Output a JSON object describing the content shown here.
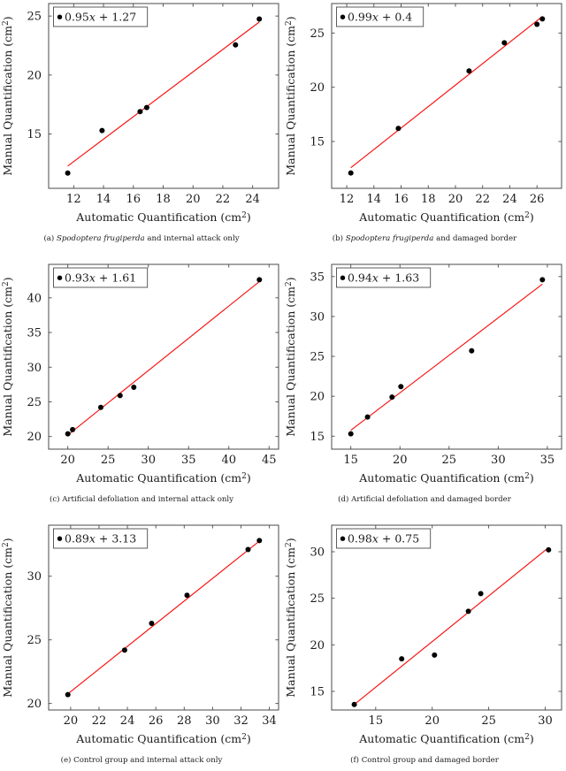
{
  "figure": {
    "xlabel": "Automatic Quantification (cm²)",
    "ylabel": "Manual Quantification (cm²)"
  },
  "colors": {
    "fit_line": "#f80f0f",
    "marker": "#000000",
    "frame": "#4a4a4a",
    "text": "#1b1b1b",
    "legend_bg": "#ffffff"
  },
  "chart_data": [
    {
      "id": "a",
      "type": "scatter",
      "xlabel": "Automatic Quantification (cm²)",
      "ylabel": "Manual Quantification (cm²)",
      "legend": {
        "label": "0.95x + 1.27",
        "coef": "0.95",
        "var": "x",
        "rest": " + 1.27",
        "position": "top-left"
      },
      "fit": {
        "slope": 0.95,
        "intercept": 1.27
      },
      "points": [
        [
          11.6,
          11.7
        ],
        [
          13.9,
          15.3
        ],
        [
          16.45,
          16.9
        ],
        [
          16.9,
          17.25
        ],
        [
          22.85,
          22.55
        ],
        [
          24.45,
          24.75
        ]
      ],
      "xlim": [
        10.32,
        25.74
      ],
      "ylim": [
        10.4,
        26.06
      ],
      "xticks": [
        12,
        14,
        16,
        18,
        20,
        22,
        24
      ],
      "yticks": [
        15,
        20,
        25
      ],
      "grid": false,
      "caption": [
        {
          "text": "(a) ",
          "italic": false
        },
        {
          "text": "Spodoptera frugiperda",
          "italic": true
        },
        {
          "text": " and internal attack only",
          "italic": false
        }
      ]
    },
    {
      "id": "b",
      "type": "scatter",
      "xlabel": "Automatic Quantification (cm²)",
      "ylabel": "Manual Quantification (cm²)",
      "legend": {
        "label": "0.99x + 0.4",
        "coef": "0.99",
        "var": "x",
        "rest": " + 0.4",
        "position": "top-left"
      },
      "fit": {
        "slope": 0.99,
        "intercept": 0.4
      },
      "points": [
        [
          12.3,
          12.1
        ],
        [
          15.8,
          16.2
        ],
        [
          21.0,
          21.5
        ],
        [
          23.6,
          24.1
        ],
        [
          26.0,
          25.8
        ],
        [
          26.4,
          26.3
        ]
      ],
      "xlim": [
        10.89,
        27.81
      ],
      "ylim": [
        10.68,
        27.72
      ],
      "xticks": [
        12,
        14,
        16,
        18,
        20,
        22,
        24,
        26
      ],
      "yticks": [
        15,
        20,
        25
      ],
      "grid": false,
      "caption": [
        {
          "text": "(b) ",
          "italic": false
        },
        {
          "text": "Spodoptera frugiperda",
          "italic": true
        },
        {
          "text": " and damaged border",
          "italic": false
        }
      ]
    },
    {
      "id": "c",
      "type": "scatter",
      "xlabel": "Automatic Quantification (cm²)",
      "ylabel": "Manual Quantification (cm²)",
      "legend": {
        "label": "0.93x + 1.61",
        "coef": "0.93",
        "var": "x",
        "rest": " + 1.61",
        "position": "top-left"
      },
      "fit": {
        "slope": 0.93,
        "intercept": 1.61
      },
      "points": [
        [
          20.0,
          20.4
        ],
        [
          20.6,
          21.0
        ],
        [
          24.1,
          24.2
        ],
        [
          26.5,
          25.9
        ],
        [
          28.2,
          27.1
        ],
        [
          43.8,
          42.6
        ]
      ],
      "xlim": [
        17.62,
        46.18
      ],
      "ylim": [
        18.18,
        44.82
      ],
      "xticks": [
        20,
        25,
        30,
        35,
        40,
        45
      ],
      "yticks": [
        20,
        25,
        30,
        35,
        40
      ],
      "grid": false,
      "caption": [
        {
          "text": "(c) Artificial defoliation and internal attack only",
          "italic": false
        }
      ]
    },
    {
      "id": "d",
      "type": "scatter",
      "xlabel": "Automatic Quantification (cm²)",
      "ylabel": "Manual Quantification (cm²)",
      "legend": {
        "label": "0.94x + 1.63",
        "coef": "0.94",
        "var": "x",
        "rest": " + 1.63",
        "position": "top-left"
      },
      "fit": {
        "slope": 0.94,
        "intercept": 1.63
      },
      "points": [
        [
          15.0,
          15.3
        ],
        [
          16.7,
          17.4
        ],
        [
          19.2,
          19.9
        ],
        [
          20.1,
          21.2
        ],
        [
          27.3,
          25.7
        ],
        [
          34.5,
          34.6
        ]
      ],
      "xlim": [
        13.05,
        36.45
      ],
      "ylim": [
        13.37,
        36.53
      ],
      "xticks": [
        15,
        20,
        25,
        30,
        35
      ],
      "yticks": [
        15,
        20,
        25,
        30,
        35
      ],
      "grid": false,
      "caption": [
        {
          "text": "(d) Artificial defoliation and damaged border",
          "italic": false
        }
      ]
    },
    {
      "id": "e",
      "type": "scatter",
      "xlabel": "Automatic Quantification (cm²)",
      "ylabel": "Manual Quantification (cm²)",
      "legend": {
        "label": "0.89x + 3.13",
        "coef": "0.89",
        "var": "x",
        "rest": " + 3.13",
        "position": "top-left"
      },
      "fit": {
        "slope": 0.89,
        "intercept": 3.13
      },
      "points": [
        [
          19.8,
          20.7
        ],
        [
          23.8,
          24.2
        ],
        [
          25.7,
          26.3
        ],
        [
          28.2,
          28.5
        ],
        [
          32.5,
          32.1
        ],
        [
          33.3,
          32.8
        ]
      ],
      "xlim": [
        18.45,
        34.65
      ],
      "ylim": [
        19.49,
        34.01
      ],
      "xticks": [
        20,
        22,
        24,
        26,
        28,
        30,
        32,
        34
      ],
      "yticks": [
        20,
        25,
        30
      ],
      "grid": false,
      "caption": [
        {
          "text": "(e) Control group and internal attack only",
          "italic": false
        }
      ]
    },
    {
      "id": "f",
      "type": "scatter",
      "xlabel": "Automatic Quantification (cm²)",
      "ylabel": "Manual Quantification (cm²)",
      "legend": {
        "label": "0.98x + 0.75",
        "coef": "0.98",
        "var": "x",
        "rest": " + 0.75",
        "position": "top-left"
      },
      "fit": {
        "slope": 0.98,
        "intercept": 0.75
      },
      "points": [
        [
          13.1,
          13.6
        ],
        [
          17.3,
          18.5
        ],
        [
          20.2,
          18.9
        ],
        [
          23.2,
          23.6
        ],
        [
          24.3,
          25.5
        ],
        [
          30.3,
          30.2
        ]
      ],
      "xlim": [
        11.1,
        31.45
      ],
      "ylim": [
        13.0,
        32.85
      ],
      "xticks": [
        15,
        20,
        25,
        30
      ],
      "yticks": [
        15,
        20,
        25,
        30
      ],
      "grid": false,
      "caption": [
        {
          "text": "(f) Control group and damaged border",
          "italic": false
        }
      ]
    }
  ]
}
